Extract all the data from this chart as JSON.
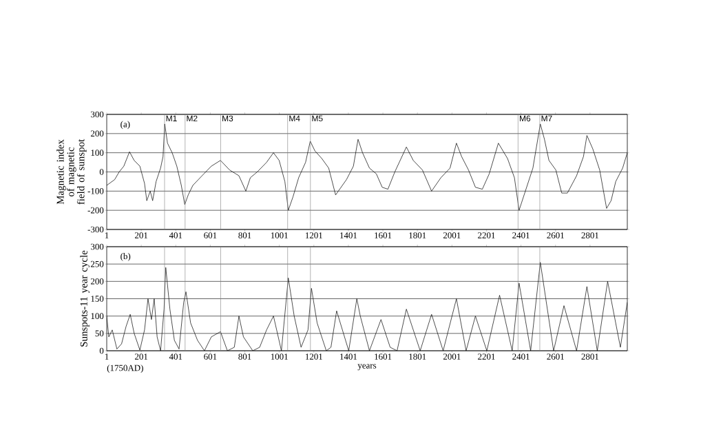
{
  "chart_data": [
    {
      "type": "line",
      "ylabel": "Magnetic index of magnetic field of sunspot",
      "annotations": [
        "(a)"
      ],
      "xlim": [
        1,
        3017
      ],
      "xticks": [
        1,
        201,
        401,
        601,
        801,
        1001,
        1201,
        1401,
        1601,
        1801,
        2001,
        2201,
        2401,
        2601,
        2801
      ],
      "ylim": [
        -300,
        300
      ],
      "yticks": [
        -300,
        -200,
        -100,
        0,
        100,
        200,
        300
      ],
      "grid": "y",
      "marker": "none",
      "line_style": "solid",
      "ref_lines": [
        {
          "axis": "x",
          "value": 336,
          "label": "M1",
          "color": "#808080"
        },
        {
          "axis": "x",
          "value": 455,
          "label": "M2",
          "color": "#808080"
        },
        {
          "axis": "x",
          "value": 661,
          "label": "M3",
          "color": "#808080"
        },
        {
          "axis": "x",
          "value": 1049,
          "label": "M4",
          "color": "#808080"
        },
        {
          "axis": "x",
          "value": 1181,
          "label": "M5",
          "color": "#808080"
        },
        {
          "axis": "x",
          "value": 2384,
          "label": "M6",
          "color": "#808080"
        },
        {
          "axis": "x",
          "value": 2510,
          "label": "M7",
          "color": "#808080"
        }
      ],
      "x": [
        1,
        47,
        73,
        100,
        133,
        160,
        193,
        220,
        233,
        253,
        267,
        287,
        313,
        327,
        337,
        353,
        380,
        407,
        433,
        453,
        473,
        500,
        553,
        607,
        660,
        713,
        767,
        807,
        833,
        873,
        927,
        967,
        1000,
        1033,
        1053,
        1080,
        1113,
        1153,
        1180,
        1207,
        1247,
        1287,
        1327,
        1390,
        1430,
        1457,
        1483,
        1523,
        1563,
        1597,
        1630,
        1670,
        1737,
        1777,
        1830,
        1883,
        1937,
        1990,
        2027,
        2057,
        2097,
        2137,
        2177,
        2217,
        2270,
        2323,
        2363,
        2390,
        2430,
        2470,
        2513,
        2537,
        2563,
        2603,
        2637,
        2670,
        2723,
        2763,
        2783,
        2817,
        2857,
        2897,
        2923,
        2950,
        2990,
        3017
      ],
      "series": [
        {
          "color": "#000000",
          "values": [
            -70,
            -40,
            0,
            30,
            105,
            60,
            30,
            -60,
            -150,
            -100,
            -150,
            -50,
            20,
            80,
            250,
            150,
            100,
            30,
            -70,
            -170,
            -120,
            -70,
            -20,
            30,
            60,
            10,
            -20,
            -100,
            -30,
            0,
            50,
            100,
            60,
            -50,
            -200,
            -130,
            -30,
            50,
            160,
            110,
            70,
            20,
            -120,
            -40,
            30,
            170,
            100,
            20,
            -10,
            -80,
            -90,
            0,
            130,
            60,
            10,
            -100,
            -30,
            20,
            150,
            80,
            10,
            -80,
            -90,
            -10,
            150,
            70,
            -30,
            -200,
            -90,
            20,
            250,
            170,
            60,
            10,
            -110,
            -110,
            -20,
            80,
            190,
            120,
            10,
            -190,
            -150,
            -50,
            20,
            100
          ]
        }
      ]
    },
    {
      "type": "line",
      "ylabel": "Sunspots-11 year cycle",
      "xlabel": "years",
      "annotations": [
        "(b)",
        "(1750AD)"
      ],
      "xlim": [
        1,
        3017
      ],
      "xticks": [
        1,
        201,
        401,
        601,
        801,
        1001,
        1201,
        1401,
        1601,
        1801,
        2001,
        2201,
        2401,
        2601,
        2801
      ],
      "ylim": [
        0,
        300
      ],
      "yticks": [
        0,
        50,
        100,
        150,
        200,
        250,
        300
      ],
      "grid": "y",
      "marker": "none",
      "line_style": "solid",
      "ref_lines": [
        {
          "axis": "x",
          "value": 336,
          "color": "#808080"
        },
        {
          "axis": "x",
          "value": 455,
          "color": "#808080"
        },
        {
          "axis": "x",
          "value": 661,
          "color": "#808080"
        },
        {
          "axis": "x",
          "value": 1049,
          "color": "#808080"
        },
        {
          "axis": "x",
          "value": 1181,
          "color": "#808080"
        },
        {
          "axis": "x",
          "value": 2384,
          "color": "#808080"
        },
        {
          "axis": "x",
          "value": 2510,
          "color": "#808080"
        }
      ],
      "x": [
        1,
        13,
        33,
        60,
        87,
        113,
        137,
        160,
        193,
        220,
        240,
        260,
        276,
        293,
        313,
        333,
        343,
        367,
        393,
        420,
        447,
        460,
        487,
        527,
        567,
        607,
        660,
        700,
        740,
        767,
        793,
        847,
        887,
        927,
        967,
        1013,
        1053,
        1087,
        1127,
        1167,
        1187,
        1220,
        1273,
        1300,
        1333,
        1403,
        1450,
        1470,
        1523,
        1590,
        1643,
        1683,
        1737,
        1817,
        1883,
        1950,
        2027,
        2083,
        2137,
        2203,
        2277,
        2350,
        2390,
        2457,
        2513,
        2590,
        2650,
        2723,
        2783,
        2843,
        2903,
        2977,
        3017
      ],
      "series": [
        {
          "color": "#000000",
          "values": [
            100,
            40,
            60,
            5,
            20,
            70,
            105,
            50,
            2,
            60,
            150,
            90,
            150,
            40,
            0,
            120,
            240,
            120,
            30,
            5,
            140,
            170,
            80,
            30,
            0,
            40,
            55,
            0,
            10,
            100,
            40,
            0,
            10,
            60,
            100,
            0,
            210,
            100,
            10,
            60,
            180,
            80,
            0,
            10,
            115,
            0,
            150,
            100,
            0,
            90,
            10,
            0,
            120,
            0,
            105,
            0,
            150,
            0,
            100,
            0,
            160,
            0,
            195,
            0,
            255,
            0,
            130,
            0,
            185,
            0,
            200,
            10,
            140
          ]
        }
      ]
    }
  ]
}
